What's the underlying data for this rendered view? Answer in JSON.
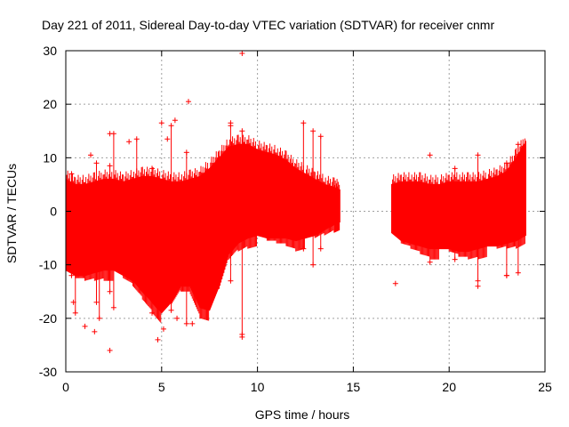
{
  "chart_data": {
    "type": "scatter",
    "title": "Day 221 of 2011, Sidereal Day-to-day VTEC variation (SDTVAR) for receiver cnmr",
    "xlabel": "GPS time / hours",
    "ylabel": "SDTVAR / TECUs",
    "xlim": [
      0,
      25
    ],
    "ylim": [
      -30,
      30
    ],
    "x_ticks": [
      "0",
      "5",
      "10",
      "15",
      "20",
      "25"
    ],
    "y_ticks": [
      "-30",
      "-20",
      "-10",
      "0",
      "10",
      "20",
      "30"
    ],
    "grid": true,
    "series_color": "#ff0000",
    "series": [
      {
        "name": "SDTVAR",
        "segments": [
          {
            "x": [
              0.0,
              0.5,
              1.0,
              1.5,
              2.0,
              2.5,
              3.0,
              3.5,
              4.0,
              4.5,
              5.0,
              5.5,
              6.0,
              6.5,
              7.0,
              7.5,
              8.0,
              8.5,
              9.0,
              9.5,
              10.0,
              10.5,
              11.0,
              11.5,
              12.0,
              12.5,
              13.0,
              13.5,
              14.0,
              14.3
            ],
            "upper": [
              6.0,
              5.0,
              5.0,
              5.5,
              6.0,
              6.0,
              5.5,
              6.0,
              6.5,
              6.5,
              6.0,
              5.5,
              5.5,
              6.0,
              6.5,
              8.0,
              10.0,
              12.0,
              12.5,
              12.5,
              11.5,
              11.0,
              10.5,
              9.5,
              8.0,
              7.0,
              6.0,
              5.0,
              4.5,
              4.0
            ],
            "lower": [
              -11.0,
              -12.0,
              -12.0,
              -11.5,
              -11.0,
              -11.0,
              -12.0,
              -13.0,
              -15.0,
              -17.0,
              -19.0,
              -17.0,
              -14.0,
              -14.0,
              -18.0,
              -18.5,
              -14.0,
              -8.0,
              -6.0,
              -5.0,
              -4.5,
              -5.0,
              -5.0,
              -5.0,
              -5.5,
              -5.0,
              -4.5,
              -3.5,
              -2.5,
              -2.0
            ]
          },
          {
            "x": [
              17.0,
              17.5,
              18.0,
              18.5,
              19.0,
              19.5,
              20.0,
              20.5,
              21.0,
              21.5,
              22.0,
              22.5,
              23.0,
              23.5,
              24.0
            ],
            "upper": [
              5.0,
              5.5,
              5.5,
              5.5,
              5.0,
              5.0,
              5.5,
              5.5,
              5.5,
              5.5,
              6.0,
              6.5,
              7.5,
              10.0,
              13.0
            ],
            "lower": [
              -4.0,
              -5.5,
              -6.0,
              -6.5,
              -7.0,
              -7.0,
              -7.0,
              -7.5,
              -7.5,
              -7.0,
              -6.5,
              -6.5,
              -6.0,
              -5.5,
              -4.5
            ]
          }
        ],
        "spikes": [
          {
            "x": 0.3,
            "min": -12.0,
            "max": 7.0
          },
          {
            "x": 0.5,
            "min": -19.0,
            "max": 5.0
          },
          {
            "x": 1.6,
            "min": -17.0,
            "max": 9.0
          },
          {
            "x": 1.75,
            "min": -20.0,
            "max": 4.0
          },
          {
            "x": 2.3,
            "min": -15.0,
            "max": 8.5
          },
          {
            "x": 2.5,
            "min": -18.0,
            "max": 14.5
          },
          {
            "x": 3.7,
            "min": -12.0,
            "max": 13.5
          },
          {
            "x": 4.5,
            "min": -19.0,
            "max": 8.0
          },
          {
            "x": 5.5,
            "min": -18.5,
            "max": 16.0
          },
          {
            "x": 6.3,
            "min": -21.0,
            "max": 11.0
          },
          {
            "x": 8.6,
            "min": -13.0,
            "max": 16.0
          },
          {
            "x": 9.2,
            "min": -23.5,
            "max": 15.0
          },
          {
            "x": 12.4,
            "min": -7.0,
            "max": 16.5
          },
          {
            "x": 12.9,
            "min": -10.0,
            "max": 15.0
          },
          {
            "x": 13.3,
            "min": -7.0,
            "max": 14.0
          },
          {
            "x": 20.3,
            "min": -9.0,
            "max": 8.0
          },
          {
            "x": 21.5,
            "min": -13.0,
            "max": 10.5
          },
          {
            "x": 23.0,
            "min": -12.0,
            "max": 9.0
          },
          {
            "x": 23.6,
            "min": -11.5,
            "max": 12.5
          }
        ],
        "outliers": [
          {
            "x": 9.2,
            "y": 29.5
          },
          {
            "x": 6.4,
            "y": 20.5
          },
          {
            "x": 5.7,
            "y": 17.0
          },
          {
            "x": 5.0,
            "y": 16.5
          },
          {
            "x": 8.6,
            "y": 16.5
          },
          {
            "x": 2.3,
            "y": 14.5
          },
          {
            "x": 5.3,
            "y": 13.5
          },
          {
            "x": 3.3,
            "y": 13.0
          },
          {
            "x": 1.3,
            "y": 10.5
          },
          {
            "x": 19.0,
            "y": 10.5
          },
          {
            "x": 0.4,
            "y": -17.0
          },
          {
            "x": 1.0,
            "y": -21.5
          },
          {
            "x": 1.5,
            "y": -22.5
          },
          {
            "x": 2.3,
            "y": -26.0
          },
          {
            "x": 4.8,
            "y": -24.0
          },
          {
            "x": 5.1,
            "y": -22.0
          },
          {
            "x": 5.8,
            "y": -20.0
          },
          {
            "x": 6.6,
            "y": -21.0
          },
          {
            "x": 9.2,
            "y": -23.0
          },
          {
            "x": 17.2,
            "y": -13.5
          },
          {
            "x": 19.0,
            "y": -9.5
          },
          {
            "x": 21.5,
            "y": -14.0
          },
          {
            "x": 23.0,
            "y": -12.0
          }
        ]
      }
    ]
  }
}
